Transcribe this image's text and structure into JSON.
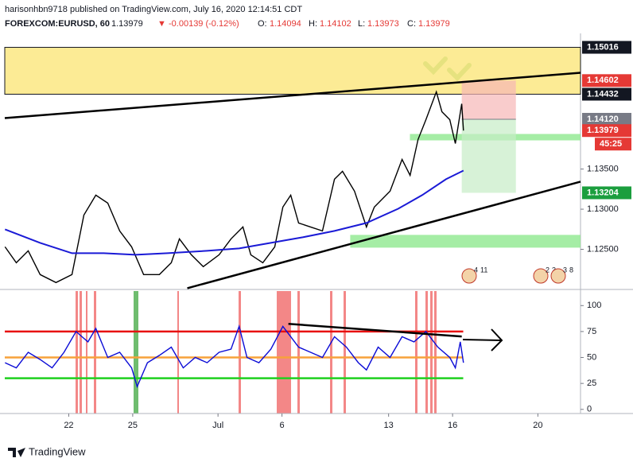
{
  "header": {
    "publisher": "harisonhbn9718 published on TradingView.com, July 16, 2020 12:14:51 CDT",
    "symbol": "FOREXCOM:EURUSD, 60",
    "last": "1.13979",
    "direction": "▼",
    "change": "-0.00139 (-0.12%)",
    "ohlc": [
      {
        "key": "O:",
        "value": "1.14094"
      },
      {
        "key": "H:",
        "value": "1.14102"
      },
      {
        "key": "L:",
        "value": "1.13973"
      },
      {
        "key": "C:",
        "value": "1.13979"
      }
    ]
  },
  "chart_data": [
    {
      "type": "line",
      "xlim": [
        -3,
        24
      ],
      "xticks": [
        {
          "value": 0,
          "label": "22"
        },
        {
          "value": 3,
          "label": "25"
        },
        {
          "value": 7,
          "label": "Jul"
        },
        {
          "value": 10,
          "label": "6"
        },
        {
          "value": 15,
          "label": "13"
        },
        {
          "value": 18,
          "label": "16"
        },
        {
          "value": 22,
          "label": "20"
        }
      ],
      "ylim": [
        1.1202,
        1.1514
      ],
      "yticks": [
        {
          "value": 1.125,
          "label": "1.12500"
        },
        {
          "value": 1.13,
          "label": "1.13000"
        },
        {
          "value": 1.135,
          "label": "1.13500"
        }
      ],
      "series": [
        {
          "color": "#000000",
          "x": [
            -2.99,
            -2.46,
            -1.9,
            -1.34,
            -0.6,
            0.15,
            0.71,
            1.27,
            1.83,
            2.39,
            2.95,
            3.51,
            4.25,
            4.81,
            5.19,
            5.75,
            6.31,
            7.05,
            7.61,
            8.17,
            8.54,
            9.1,
            9.66,
            10.04,
            10.41,
            10.78,
            11.34,
            11.9,
            12.46,
            12.84,
            13.4,
            13.96,
            14.33,
            15.07,
            15.63,
            16.01,
            16.38,
            16.75,
            17.24,
            17.5,
            17.87,
            18.13,
            18.43,
            18.51
          ],
          "values": [
            1.12531,
            1.12333,
            1.12482,
            1.12185,
            1.12086,
            1.12185,
            1.12927,
            1.13175,
            1.13076,
            1.12729,
            1.12531,
            1.12185,
            1.12185,
            1.12333,
            1.1263,
            1.12432,
            1.12284,
            1.12432,
            1.1263,
            1.12779,
            1.12432,
            1.12333,
            1.12531,
            1.13026,
            1.13175,
            1.12828,
            1.12779,
            1.12729,
            1.13373,
            1.13472,
            1.13224,
            1.12779,
            1.13026,
            1.13224,
            1.1362,
            1.13422,
            1.13868,
            1.14115,
            1.14462,
            1.14214,
            1.14115,
            1.13818,
            1.14313,
            1.13979
          ]
        },
        {
          "color": "#1a1ad6",
          "x": [
            -2.99,
            -1.34,
            0.15,
            1.64,
            3.13,
            4.63,
            6.49,
            7.99,
            9.48,
            10.97,
            12.46,
            13.96,
            15.45,
            16.57,
            17.69,
            18.51
          ],
          "values": [
            1.12749,
            1.12581,
            1.12452,
            1.12452,
            1.12432,
            1.12452,
            1.12482,
            1.12511,
            1.12581,
            1.1265,
            1.12729,
            1.12828,
            1.13006,
            1.13175,
            1.13373,
            1.13481
          ]
        }
      ],
      "zones": [
        {
          "color": "#fce98a",
          "x": [
            -3,
            24
          ],
          "values": [
            1.14432,
            1.15016
          ]
        },
        {
          "color": "#8ee88e",
          "x": [
            16,
            24
          ],
          "values": [
            1.13857,
            1.13937
          ]
        },
        {
          "color": "#8ee88e",
          "x": [
            13.2,
            24
          ],
          "values": [
            1.12521,
            1.1268
          ]
        }
      ],
      "trendlines": [
        {
          "color": "#000000",
          "x": [
            -3,
            24
          ],
          "values": [
            1.14135,
            1.14699
          ]
        },
        {
          "color": "#000000",
          "x": [
            5.56,
            24
          ],
          "values": [
            1.12016,
            1.13343
          ]
        }
      ],
      "position": {
        "x": [
          18.43,
          20.97
        ],
        "entry": 1.1412,
        "stop": 1.14602,
        "target": 1.13204
      },
      "price_tags": [
        {
          "value": 1.15016,
          "label": "1.15016",
          "color": "#131722"
        },
        {
          "value": 1.14602,
          "label": "1.14602",
          "color": "#e53935"
        },
        {
          "value": 1.14432,
          "label": "1.14432",
          "color": "#131722"
        },
        {
          "value": 1.1412,
          "label": "1.14120",
          "color": "#787b86"
        },
        {
          "value": 1.13979,
          "label": "1.13979",
          "color": "#e53935"
        },
        {
          "value": 1.13204,
          "label": "1.13204",
          "color": "#1b9e3e"
        }
      ],
      "countdown": "45:25",
      "events": [
        [
          "4",
          "11"
        ],
        [
          "2",
          "3"
        ],
        [
          "3",
          "8"
        ]
      ]
    },
    {
      "type": "line",
      "xlim": [
        -3,
        24
      ],
      "ylim": [
        -4,
        114
      ],
      "yticks": [
        0,
        25,
        50,
        75,
        100
      ],
      "levels": [
        {
          "value": 75,
          "color": "#e81010",
          "x": [
            -3,
            18.5
          ]
        },
        {
          "value": 50,
          "color": "#f7a23b",
          "x": [
            -3,
            18.5
          ]
        },
        {
          "value": 30,
          "color": "#1fd11f",
          "x": [
            -3,
            18.5
          ]
        }
      ],
      "series": [
        {
          "color": "#0b0bd6",
          "x": [
            -2.99,
            -2.46,
            -1.9,
            -1.34,
            -0.78,
            -0.22,
            0.34,
            0.9,
            1.27,
            1.83,
            2.39,
            2.95,
            3.21,
            3.69,
            4.25,
            4.81,
            5.37,
            5.93,
            6.49,
            7.05,
            7.61,
            7.99,
            8.36,
            8.92,
            9.48,
            10.04,
            10.41,
            10.78,
            11.34,
            11.9,
            12.46,
            13.02,
            13.58,
            13.96,
            14.51,
            15.07,
            15.63,
            16.19,
            16.75,
            17.31,
            17.87,
            18.13,
            18.36,
            18.51
          ],
          "values": [
            45,
            40,
            55,
            48,
            40,
            55,
            75,
            65,
            78,
            50,
            55,
            40,
            22,
            45,
            52,
            60,
            40,
            50,
            45,
            55,
            58,
            80,
            50,
            45,
            58,
            80,
            70,
            60,
            55,
            50,
            70,
            60,
            45,
            38,
            60,
            50,
            70,
            65,
            75,
            60,
            50,
            40,
            65,
            45
          ]
        }
      ],
      "trendlines": [
        {
          "color": "#000000",
          "x": [
            10.3,
            18.43
          ],
          "values": [
            82.4,
            70.2
          ]
        }
      ]
    }
  ],
  "footer": {
    "brand": "TradingView"
  }
}
